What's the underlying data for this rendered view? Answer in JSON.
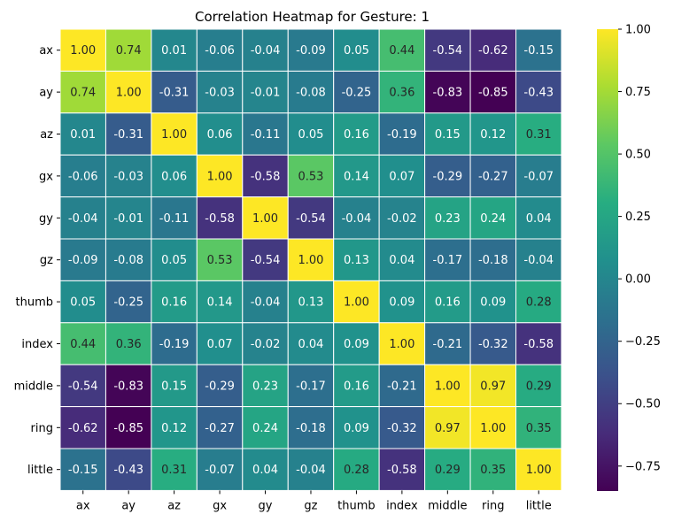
{
  "chart_data": {
    "type": "heatmap",
    "title": "Correlation Heatmap for Gesture: 1",
    "x_labels": [
      "ax",
      "ay",
      "az",
      "gx",
      "gy",
      "gz",
      "thumb",
      "index",
      "middle",
      "ring",
      "little"
    ],
    "y_labels": [
      "ax",
      "ay",
      "az",
      "gx",
      "gy",
      "gz",
      "thumb",
      "index",
      "middle",
      "ring",
      "little"
    ],
    "values": [
      [
        1.0,
        0.74,
        0.01,
        -0.06,
        -0.04,
        -0.09,
        0.05,
        0.44,
        -0.54,
        -0.62,
        -0.15
      ],
      [
        0.74,
        1.0,
        -0.31,
        -0.03,
        -0.01,
        -0.08,
        -0.25,
        0.36,
        -0.83,
        -0.85,
        -0.43
      ],
      [
        0.01,
        -0.31,
        1.0,
        0.06,
        -0.11,
        0.05,
        0.16,
        -0.19,
        0.15,
        0.12,
        0.31
      ],
      [
        -0.06,
        -0.03,
        0.06,
        1.0,
        -0.58,
        0.53,
        0.14,
        0.07,
        -0.29,
        -0.27,
        -0.07
      ],
      [
        -0.04,
        -0.01,
        -0.11,
        -0.58,
        1.0,
        -0.54,
        -0.04,
        -0.02,
        0.23,
        0.24,
        0.04
      ],
      [
        -0.09,
        -0.08,
        0.05,
        0.53,
        -0.54,
        1.0,
        0.13,
        0.04,
        -0.17,
        -0.18,
        -0.04
      ],
      [
        0.05,
        -0.25,
        0.16,
        0.14,
        -0.04,
        0.13,
        1.0,
        0.09,
        0.16,
        0.09,
        0.28
      ],
      [
        0.44,
        0.36,
        -0.19,
        0.07,
        -0.02,
        0.04,
        0.09,
        1.0,
        -0.21,
        -0.32,
        -0.58
      ],
      [
        -0.54,
        -0.83,
        0.15,
        -0.29,
        0.23,
        -0.17,
        0.16,
        -0.21,
        1.0,
        0.97,
        0.29
      ],
      [
        -0.62,
        -0.85,
        0.12,
        -0.27,
        0.24,
        -0.18,
        0.09,
        -0.32,
        0.97,
        1.0,
        0.35
      ],
      [
        -0.15,
        -0.43,
        0.31,
        -0.07,
        0.04,
        -0.04,
        0.28,
        -0.58,
        0.29,
        0.35,
        1.0
      ]
    ],
    "value_format": "2 decimals",
    "colormap": "viridis",
    "vmin": -0.85,
    "vmax": 1.0,
    "colorbar_ticks": [
      1.0,
      0.75,
      0.5,
      0.25,
      0.0,
      -0.25,
      -0.5,
      -0.75
    ],
    "grid_line_color": "#ffffff",
    "annotation_dark_text_color": "#262626",
    "annotation_light_text_color": "#ffffff"
  }
}
